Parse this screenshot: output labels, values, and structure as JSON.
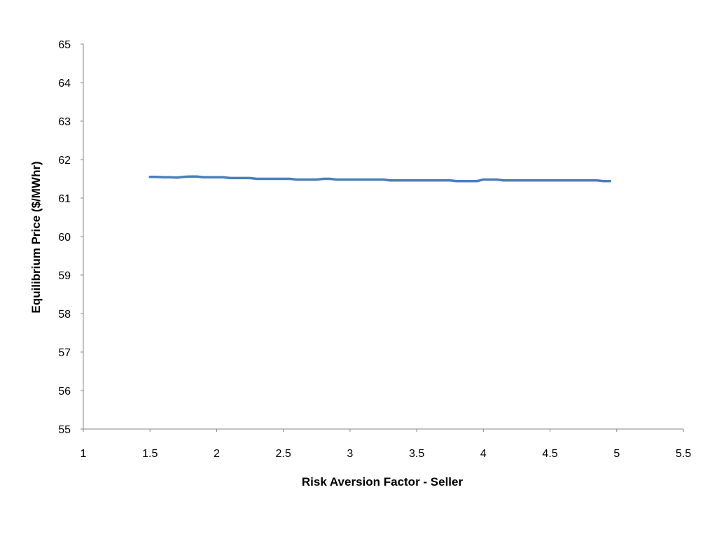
{
  "chart_data": {
    "type": "line",
    "title": "",
    "xlabel": "Risk Aversion Factor - Seller",
    "ylabel": "Equilibrium Price ($/MWhr)",
    "xlim": [
      1,
      5.5
    ],
    "ylim": [
      55,
      65
    ],
    "x_ticks": [
      "1",
      "1.5",
      "2",
      "2.5",
      "3",
      "3.5",
      "4",
      "4.5",
      "5",
      "5.5"
    ],
    "y_ticks": [
      "55",
      "56",
      "57",
      "58",
      "59",
      "60",
      "61",
      "62",
      "63",
      "64",
      "65"
    ],
    "grid": false,
    "legend": "none",
    "series": [
      {
        "color": "#4a7ebb",
        "x": [
          1.5,
          1.55,
          1.6,
          1.65,
          1.7,
          1.75,
          1.8,
          1.85,
          1.9,
          1.95,
          2.0,
          2.05,
          2.1,
          2.15,
          2.2,
          2.25,
          2.3,
          2.35,
          2.4,
          2.45,
          2.5,
          2.55,
          2.6,
          2.65,
          2.7,
          2.75,
          2.8,
          2.85,
          2.9,
          2.95,
          3.0,
          3.05,
          3.1,
          3.15,
          3.2,
          3.25,
          3.3,
          3.35,
          3.4,
          3.45,
          3.5,
          3.55,
          3.6,
          3.65,
          3.7,
          3.75,
          3.8,
          3.85,
          3.9,
          3.95,
          4.0,
          4.05,
          4.1,
          4.15,
          4.2,
          4.25,
          4.3,
          4.35,
          4.4,
          4.45,
          4.5,
          4.55,
          4.6,
          4.65,
          4.7,
          4.75,
          4.8,
          4.85,
          4.9,
          4.95
        ],
        "y": [
          61.55,
          61.55,
          61.54,
          61.54,
          61.53,
          61.55,
          61.56,
          61.56,
          61.54,
          61.54,
          61.54,
          61.54,
          61.52,
          61.52,
          61.52,
          61.52,
          61.5,
          61.5,
          61.5,
          61.5,
          61.5,
          61.5,
          61.48,
          61.48,
          61.48,
          61.48,
          61.5,
          61.5,
          61.48,
          61.48,
          61.48,
          61.48,
          61.48,
          61.48,
          61.48,
          61.48,
          61.46,
          61.46,
          61.46,
          61.46,
          61.46,
          61.46,
          61.46,
          61.46,
          61.46,
          61.46,
          61.44,
          61.44,
          61.44,
          61.44,
          61.48,
          61.48,
          61.48,
          61.46,
          61.46,
          61.46,
          61.46,
          61.46,
          61.46,
          61.46,
          61.46,
          61.46,
          61.46,
          61.46,
          61.46,
          61.46,
          61.46,
          61.46,
          61.44,
          61.44
        ]
      }
    ]
  }
}
